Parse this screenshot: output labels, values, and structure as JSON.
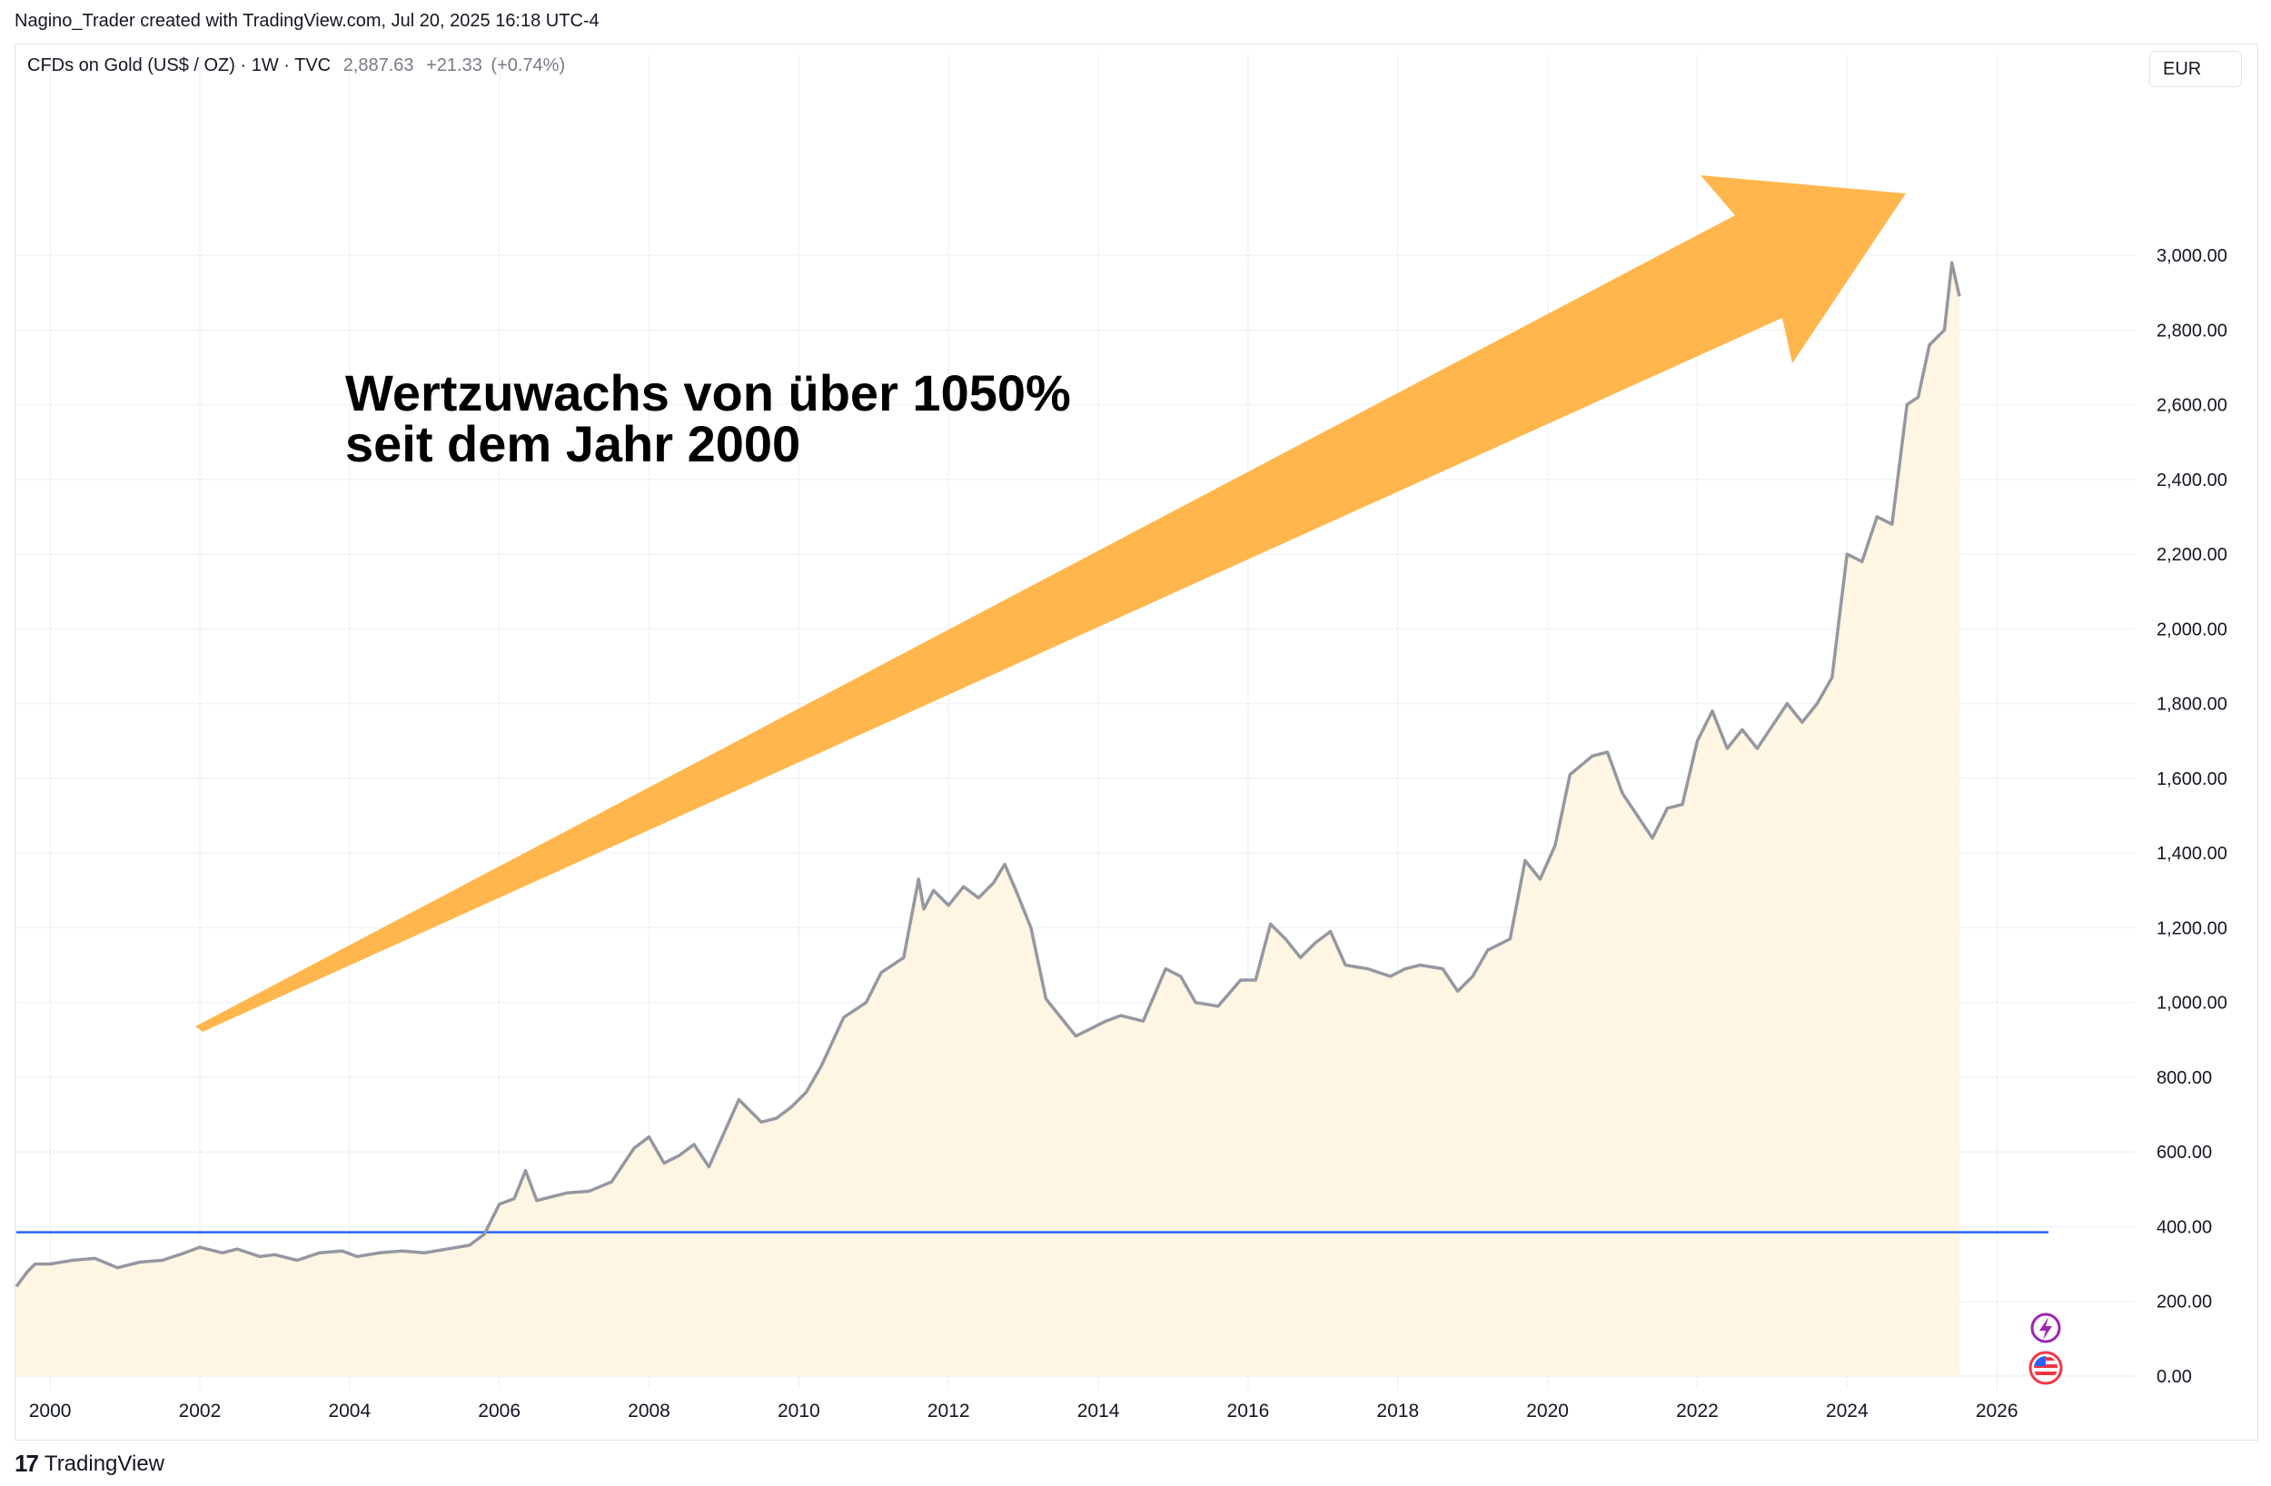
{
  "credit": "Nagino_Trader created with TradingView.com, Jul 20, 2025 16:18 UTC-4",
  "legend": {
    "symbol": "CFDs on Gold (US$ / OZ) · 1W · TVC",
    "last": "2,887.63",
    "change": "+21.33",
    "change_pct": "(+0.74%)"
  },
  "currency": "EUR",
  "footer": {
    "brand": "TradingView"
  },
  "annotation": {
    "line1": "Wertzuwachs von über 1050%",
    "line2": "seit dem Jahr 2000"
  },
  "colors": {
    "price_line": "#9598a1",
    "area_fill": "#fff5e3",
    "arrow": "#ffb74d",
    "reference_line": "#2962ff",
    "grid": "#f0f3fa"
  },
  "chart_data": {
    "type": "area",
    "xlim": [
      1999.55,
      2026.75
    ],
    "ylim": [
      0,
      3000
    ],
    "y_ticks": [
      "0.00",
      "200.00",
      "400.00",
      "600.00",
      "800.00",
      "1,000.00",
      "1,200.00",
      "1,400.00",
      "1,600.00",
      "1,800.00",
      "2,000.00",
      "2,200.00",
      "2,400.00",
      "2,600.00",
      "2,800.00",
      "3,000.00"
    ],
    "x_ticks": [
      "2000",
      "2002",
      "2004",
      "2006",
      "2008",
      "2010",
      "2012",
      "2014",
      "2016",
      "2018",
      "2020",
      "2022",
      "2024",
      "2026"
    ],
    "reference_line": {
      "y": 385
    },
    "series": [
      {
        "x": [
          1999.55,
          1999.7,
          1999.8,
          2000.0,
          2000.3,
          2000.6,
          2000.9,
          2001.2,
          2001.5,
          2001.8,
          2002.0,
          2002.3,
          2002.5,
          2002.8,
          2003.0,
          2003.3,
          2003.6,
          2003.9,
          2004.1,
          2004.4,
          2004.7,
          2005.0,
          2005.3,
          2005.6,
          2005.8,
          2006.0,
          2006.2,
          2006.35,
          2006.5,
          2006.7,
          2006.9,
          2007.2,
          2007.5,
          2007.8,
          2008.0,
          2008.2,
          2008.4,
          2008.6,
          2008.8,
          2009.0,
          2009.2,
          2009.5,
          2009.7,
          2009.9,
          2010.1,
          2010.3,
          2010.6,
          2010.9,
          2011.1,
          2011.4,
          2011.6,
          2011.67,
          2011.8,
          2012.0,
          2012.2,
          2012.4,
          2012.6,
          2012.75,
          2012.9,
          2013.1,
          2013.3,
          2013.5,
          2013.7,
          2013.9,
          2014.1,
          2014.3,
          2014.6,
          2014.9,
          2015.1,
          2015.3,
          2015.6,
          2015.9,
          2016.1,
          2016.3,
          2016.5,
          2016.7,
          2016.9,
          2017.1,
          2017.3,
          2017.6,
          2017.9,
          2018.1,
          2018.3,
          2018.6,
          2018.8,
          2019.0,
          2019.2,
          2019.5,
          2019.7,
          2019.9,
          2020.1,
          2020.3,
          2020.6,
          2020.8,
          2021.0,
          2021.2,
          2021.4,
          2021.6,
          2021.8,
          2022.0,
          2022.2,
          2022.4,
          2022.6,
          2022.8,
          2023.0,
          2023.2,
          2023.4,
          2023.6,
          2023.8,
          2024.0,
          2024.2,
          2024.4,
          2024.6,
          2024.8,
          2024.95,
          2025.1,
          2025.3,
          2025.4,
          2025.5
        ],
        "y": [
          240,
          280,
          300,
          300,
          310,
          315,
          290,
          305,
          310,
          330,
          345,
          330,
          340,
          320,
          325,
          310,
          330,
          335,
          320,
          330,
          335,
          330,
          340,
          350,
          380,
          460,
          475,
          550,
          470,
          480,
          490,
          495,
          520,
          610,
          640,
          570,
          590,
          620,
          560,
          650,
          740,
          680,
          690,
          720,
          760,
          830,
          960,
          1000,
          1080,
          1120,
          1330,
          1250,
          1300,
          1260,
          1310,
          1280,
          1320,
          1370,
          1300,
          1200,
          1010,
          960,
          910,
          930,
          950,
          965,
          950,
          1090,
          1070,
          1000,
          990,
          1060,
          1060,
          1210,
          1170,
          1120,
          1160,
          1190,
          1100,
          1090,
          1070,
          1090,
          1100,
          1090,
          1030,
          1070,
          1140,
          1170,
          1380,
          1330,
          1420,
          1610,
          1660,
          1670,
          1560,
          1500,
          1440,
          1520,
          1530,
          1700,
          1780,
          1680,
          1730,
          1680,
          1740,
          1800,
          1750,
          1800,
          1870,
          2200,
          2180,
          2300,
          2280,
          2600,
          2620,
          2760,
          2800,
          2980,
          2890
        ]
      }
    ]
  }
}
